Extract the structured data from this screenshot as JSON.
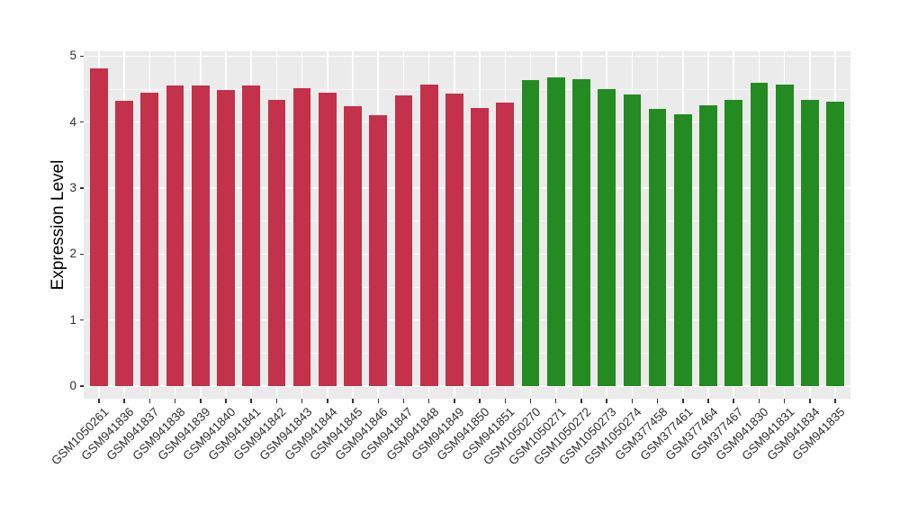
{
  "chart_data": {
    "type": "bar",
    "title": "",
    "ylabel": "Expression Level",
    "xlabel": "",
    "ylim": [
      0,
      5
    ],
    "yticks": [
      0,
      1,
      2,
      3,
      4,
      5
    ],
    "ytick_labels": [
      "0",
      "1",
      "2",
      "3",
      "4",
      "5"
    ],
    "grid": true,
    "minor_gridlines": true,
    "legend": false,
    "x_label_angle": 45,
    "bar_width_fraction": 0.7,
    "colors": {
      "panel_background": "#EBEBEB",
      "page_background": "#FFFFFF",
      "gridline": "#FFFFFF",
      "tick_mark": "#333333",
      "tick_text": "#303030",
      "axis_title_text": "#000000",
      "group_red": "#C3314B",
      "group_green": "#238B22"
    },
    "groups": [
      {
        "name": "red-group",
        "color_key": "group_red"
      },
      {
        "name": "green-group",
        "color_key": "group_green"
      }
    ],
    "categories": [
      "GSM1050261",
      "GSM941836",
      "GSM941837",
      "GSM941838",
      "GSM941839",
      "GSM941840",
      "GSM941841",
      "GSM941842",
      "GSM941843",
      "GSM941844",
      "GSM941845",
      "GSM941846",
      "GSM941847",
      "GSM941848",
      "GSM941849",
      "GSM941850",
      "GSM941851",
      "GSM1050270",
      "GSM1050271",
      "GSM1050272",
      "GSM1050273",
      "GSM1050274",
      "GSM377458",
      "GSM377461",
      "GSM377464",
      "GSM377467",
      "GSM941830",
      "GSM941831",
      "GSM941834",
      "GSM941835"
    ],
    "values": [
      4.82,
      4.32,
      4.44,
      4.55,
      4.55,
      4.48,
      4.56,
      4.33,
      4.52,
      4.45,
      4.24,
      4.1,
      4.4,
      4.57,
      4.43,
      4.22,
      4.29,
      4.64,
      4.68,
      4.65,
      4.5,
      4.42,
      4.2,
      4.12,
      4.25,
      4.33,
      4.6,
      4.57,
      4.33,
      4.31
    ],
    "group_index": [
      0,
      0,
      0,
      0,
      0,
      0,
      0,
      0,
      0,
      0,
      0,
      0,
      0,
      0,
      0,
      0,
      0,
      1,
      1,
      1,
      1,
      1,
      1,
      1,
      1,
      1,
      1,
      1,
      1,
      1
    ]
  }
}
